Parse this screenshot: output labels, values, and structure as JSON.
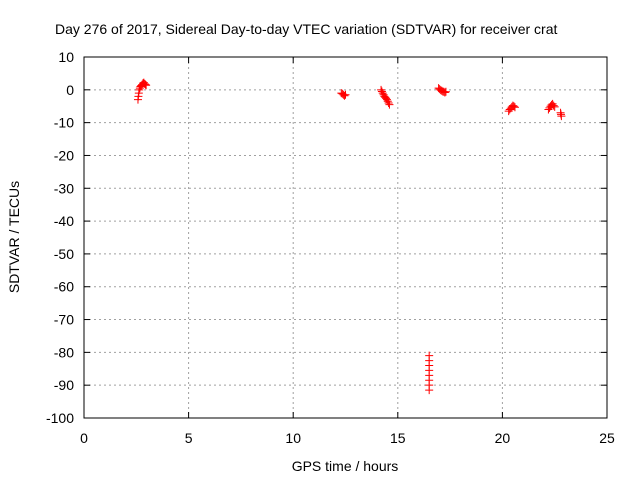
{
  "chart_data": {
    "type": "scatter",
    "title": "Day 276 of 2017, Sidereal Day-to-day VTEC variation (SDTVAR) for receiver crat",
    "xlabel": "GPS time / hours",
    "ylabel": "SDTVAR / TECUs",
    "xlim": [
      0,
      25
    ],
    "ylim": [
      -100,
      10
    ],
    "xticks": [
      0,
      5,
      10,
      15,
      20,
      25
    ],
    "yticks": [
      10,
      0,
      -10,
      -20,
      -30,
      -40,
      -50,
      -60,
      -70,
      -80,
      -90,
      -100
    ],
    "grid": true,
    "marker": "plus",
    "color": "#ff0000",
    "series": [
      {
        "name": "SDTVAR",
        "points": [
          [
            2.58,
            -3.0
          ],
          [
            2.6,
            -2.0
          ],
          [
            2.62,
            -1.0
          ],
          [
            2.64,
            0.0
          ],
          [
            2.67,
            0.5
          ],
          [
            2.7,
            1.0
          ],
          [
            2.74,
            1.3
          ],
          [
            2.78,
            1.6
          ],
          [
            2.82,
            2.0
          ],
          [
            2.86,
            2.2
          ],
          [
            2.9,
            1.8
          ],
          [
            2.94,
            1.6
          ],
          [
            2.97,
            1.4
          ],
          [
            12.3,
            -1.0
          ],
          [
            12.35,
            -1.2
          ],
          [
            12.4,
            -1.5
          ],
          [
            12.45,
            -1.8
          ],
          [
            12.5,
            -1.5
          ],
          [
            14.2,
            0.0
          ],
          [
            14.24,
            -0.5
          ],
          [
            14.28,
            -1.0
          ],
          [
            14.32,
            -1.5
          ],
          [
            14.36,
            -2.0
          ],
          [
            14.4,
            -2.3
          ],
          [
            14.44,
            -2.6
          ],
          [
            14.48,
            -3.0
          ],
          [
            14.52,
            -3.5
          ],
          [
            14.56,
            -4.0
          ],
          [
            14.6,
            -4.5
          ],
          [
            16.5,
            -81.0
          ],
          [
            16.5,
            -82.5
          ],
          [
            16.5,
            -84.0
          ],
          [
            16.5,
            -85.5
          ],
          [
            16.5,
            -87.0
          ],
          [
            16.5,
            -88.5
          ],
          [
            16.5,
            -90.0
          ],
          [
            16.5,
            -91.5
          ],
          [
            16.95,
            0.5
          ],
          [
            17.0,
            0.2
          ],
          [
            17.05,
            -0.1
          ],
          [
            17.1,
            -0.3
          ],
          [
            17.15,
            -0.5
          ],
          [
            17.2,
            -0.6
          ],
          [
            17.25,
            -0.8
          ],
          [
            17.3,
            -0.6
          ],
          [
            20.3,
            -6.5
          ],
          [
            20.35,
            -6.0
          ],
          [
            20.4,
            -5.6
          ],
          [
            20.45,
            -5.2
          ],
          [
            20.5,
            -4.8
          ],
          [
            20.55,
            -5.0
          ],
          [
            20.6,
            -5.3
          ],
          [
            22.2,
            -6.0
          ],
          [
            22.25,
            -5.5
          ],
          [
            22.3,
            -5.0
          ],
          [
            22.35,
            -4.6
          ],
          [
            22.4,
            -4.3
          ],
          [
            22.45,
            -4.8
          ],
          [
            22.5,
            -5.2
          ],
          [
            22.78,
            -7.0
          ],
          [
            22.8,
            -7.5
          ],
          [
            22.82,
            -8.0
          ]
        ]
      }
    ]
  }
}
